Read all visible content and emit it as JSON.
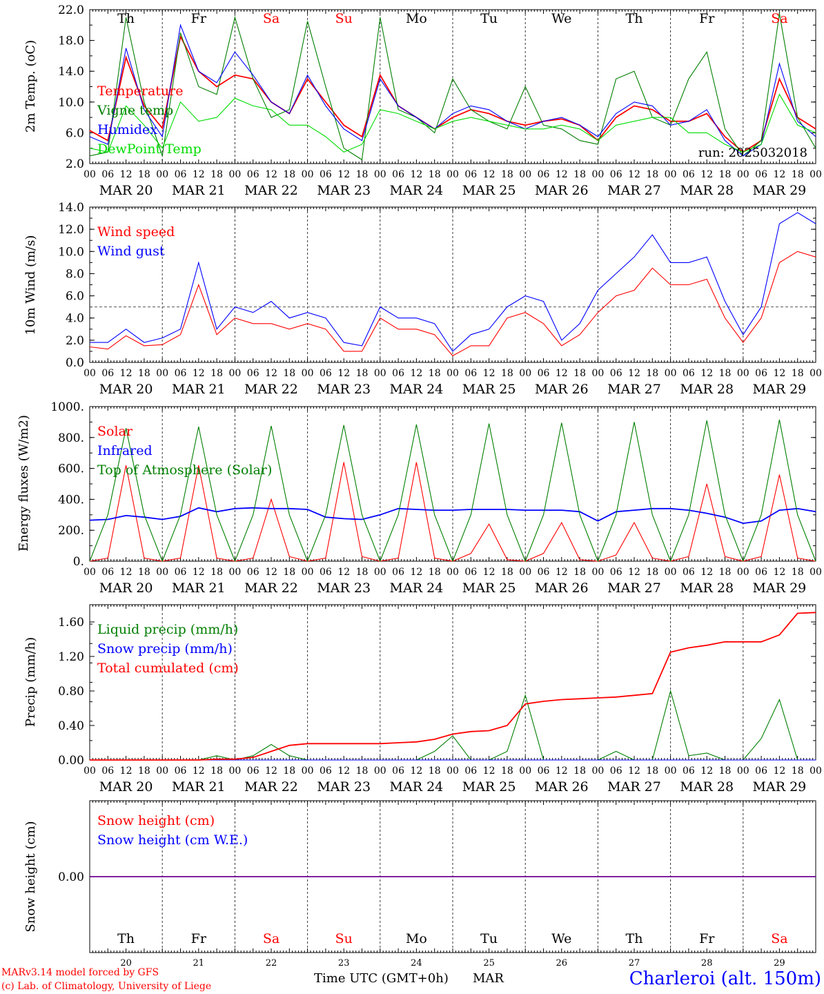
{
  "days": [
    {
      "date": "MAR 20",
      "day": "Th",
      "num": "20",
      "weekend": false
    },
    {
      "date": "MAR 21",
      "day": "Fr",
      "num": "21",
      "weekend": false
    },
    {
      "date": "MAR 22",
      "day": "Sa",
      "num": "22",
      "weekend": true
    },
    {
      "date": "MAR 23",
      "day": "Su",
      "num": "23",
      "weekend": true
    },
    {
      "date": "MAR 24",
      "day": "Mo",
      "num": "24",
      "weekend": false
    },
    {
      "date": "MAR 25",
      "day": "Tu",
      "num": "25",
      "weekend": false
    },
    {
      "date": "MAR 26",
      "day": "We",
      "num": "26",
      "weekend": false
    },
    {
      "date": "MAR 27",
      "day": "Th",
      "num": "27",
      "weekend": false
    },
    {
      "date": "MAR 28",
      "day": "Fr",
      "num": "28",
      "weekend": false
    },
    {
      "date": "MAR 29",
      "day": "Sa",
      "num": "29",
      "weekend": true
    }
  ],
  "hour_labels": [
    "00",
    "06",
    "12",
    "18"
  ],
  "footer": {
    "model_line1": "MARv3.14 model forced by GFS",
    "model_line2": "(c) Lab. of Climatology, University of Liege",
    "xlabel": "Time UTC (GMT+0h)",
    "month": "MAR",
    "station": "Charleroi (alt. 150m)"
  },
  "colors": {
    "red": "#ff0000",
    "blue": "#0000ff",
    "dkgreen": "#007f00",
    "ltgreen": "#00dd00",
    "grid": "#555555"
  },
  "chart_data": [
    {
      "type": "line",
      "ylabel": "2m Temp. (oC)",
      "ylim": [
        2.0,
        22.0
      ],
      "yticks": [
        "22.0",
        "18.0",
        "14.0",
        "10.0",
        "6.0",
        "2.0"
      ],
      "annotation": "run: 2025032018",
      "show_day_names": true,
      "x_hours_from_mar20_00utc": [
        0,
        6,
        12,
        18,
        24,
        30,
        36,
        42,
        48,
        54,
        60,
        66,
        72,
        78,
        84,
        90,
        96,
        102,
        108,
        114,
        120,
        126,
        132,
        138,
        144,
        150,
        156,
        162,
        168,
        174,
        180,
        186,
        192,
        198,
        204,
        210,
        216,
        222,
        228,
        234,
        240
      ],
      "series": [
        {
          "name": "Temperature",
          "color": "#ff0000",
          "values": [
            6.3,
            5.0,
            15.8,
            9.5,
            6.6,
            18.5,
            14.0,
            12.0,
            13.5,
            13.0,
            10.0,
            8.5,
            13.0,
            10.0,
            7.0,
            5.5,
            13.5,
            9.5,
            8.0,
            6.5,
            8.0,
            9.0,
            8.5,
            7.5,
            7.0,
            7.5,
            7.8,
            7.0,
            5.0,
            8.0,
            9.5,
            9.0,
            7.5,
            7.5,
            8.5,
            5.5,
            3.5,
            5.0,
            13.0,
            8.0,
            6.5
          ]
        },
        {
          "name": "Vigne temp",
          "color": "#007f00",
          "values": [
            3.0,
            3.5,
            21.0,
            10.0,
            3.0,
            19.0,
            12.0,
            11.0,
            21.0,
            13.0,
            8.0,
            9.0,
            20.5,
            12.0,
            4.0,
            2.5,
            21.0,
            9.0,
            8.0,
            6.0,
            13.0,
            9.0,
            7.5,
            6.5,
            12.0,
            7.0,
            6.5,
            5.0,
            4.5,
            13.0,
            14.0,
            8.0,
            7.0,
            13.0,
            16.5,
            6.5,
            3.0,
            5.0,
            21.5,
            8.0,
            4.0
          ]
        },
        {
          "name": "Humidex",
          "color": "#0000ff",
          "values": [
            5.5,
            4.5,
            17.0,
            9.0,
            5.5,
            20.0,
            14.0,
            12.5,
            16.5,
            13.5,
            10.0,
            8.5,
            13.5,
            9.5,
            6.5,
            5.0,
            13.0,
            9.5,
            8.0,
            6.5,
            8.5,
            9.5,
            9.0,
            7.5,
            6.5,
            7.5,
            8.0,
            7.0,
            5.5,
            8.5,
            10.0,
            9.5,
            7.0,
            7.5,
            9.0,
            5.0,
            3.0,
            4.5,
            15.0,
            7.5,
            5.5
          ]
        },
        {
          "name": "DewPoint Temp",
          "color": "#00dd00",
          "values": [
            4.0,
            3.5,
            9.5,
            7.0,
            4.0,
            10.0,
            7.5,
            8.0,
            10.5,
            9.5,
            9.0,
            7.0,
            7.0,
            5.5,
            3.5,
            4.5,
            9.0,
            8.5,
            7.5,
            6.5,
            7.5,
            8.0,
            7.5,
            7.0,
            6.5,
            6.5,
            7.0,
            6.5,
            5.0,
            7.0,
            7.5,
            8.0,
            8.0,
            6.0,
            6.0,
            4.5,
            3.5,
            4.5,
            11.0,
            7.0,
            6.0
          ]
        }
      ]
    },
    {
      "type": "line",
      "ylabel": "10m Wind (m/s)",
      "ylim": [
        0.0,
        14.0
      ],
      "yticks": [
        "14.0",
        "12.0",
        "10.0",
        "8.0",
        "6.0",
        "4.0",
        "2.0",
        "0.0"
      ],
      "reference_line": 5.0,
      "x_hours_from_mar20_00utc": [
        0,
        6,
        12,
        18,
        24,
        30,
        36,
        42,
        48,
        54,
        60,
        66,
        72,
        78,
        84,
        90,
        96,
        102,
        108,
        114,
        120,
        126,
        132,
        138,
        144,
        150,
        156,
        162,
        168,
        174,
        180,
        186,
        192,
        198,
        204,
        210,
        216,
        222,
        228,
        234,
        240
      ],
      "series": [
        {
          "name": "Wind speed",
          "color": "#ff0000",
          "values": [
            1.4,
            1.2,
            2.4,
            1.5,
            1.6,
            2.5,
            7.0,
            2.5,
            4.0,
            3.5,
            3.5,
            3.0,
            3.5,
            3.0,
            1.0,
            1.0,
            4.0,
            3.0,
            3.0,
            2.5,
            0.6,
            1.5,
            1.5,
            4.0,
            4.5,
            3.5,
            1.5,
            2.5,
            4.5,
            6.0,
            6.5,
            8.5,
            7.0,
            7.0,
            7.5,
            4.0,
            1.8,
            4.0,
            9.0,
            10.0,
            9.5
          ]
        },
        {
          "name": "Wind gust",
          "color": "#0000ff",
          "values": [
            1.8,
            1.8,
            3.0,
            1.8,
            2.2,
            3.0,
            9.0,
            3.0,
            5.0,
            4.5,
            5.5,
            4.0,
            4.5,
            4.0,
            1.8,
            1.5,
            5.0,
            4.0,
            4.0,
            3.5,
            1.0,
            2.5,
            3.0,
            5.0,
            6.0,
            5.5,
            2.0,
            3.5,
            6.5,
            8.0,
            9.5,
            11.5,
            9.0,
            9.0,
            9.5,
            5.5,
            2.5,
            5.0,
            12.5,
            13.5,
            12.5
          ]
        }
      ]
    },
    {
      "type": "line",
      "ylabel": "Energy fluxes (W/m2)",
      "ylim": [
        0.0,
        1000.0
      ],
      "yticks": [
        "1000.",
        "800.",
        "600.",
        "400.",
        "200.",
        "0."
      ],
      "x_hours_from_mar20_00utc": [
        0,
        6,
        12,
        18,
        24,
        30,
        36,
        42,
        48,
        54,
        60,
        66,
        72,
        78,
        84,
        90,
        96,
        102,
        108,
        114,
        120,
        126,
        132,
        138,
        144,
        150,
        156,
        162,
        168,
        174,
        180,
        186,
        192,
        198,
        204,
        210,
        216,
        222,
        228,
        234,
        240
      ],
      "series": [
        {
          "name": "Solar",
          "color": "#ff0000",
          "values": [
            0,
            20,
            620,
            20,
            0,
            20,
            620,
            20,
            0,
            20,
            400,
            30,
            0,
            20,
            640,
            30,
            0,
            20,
            640,
            20,
            0,
            50,
            240,
            10,
            0,
            50,
            250,
            10,
            0,
            40,
            250,
            20,
            0,
            30,
            500,
            30,
            0,
            30,
            560,
            20,
            0
          ]
        },
        {
          "name": "Infrared",
          "color": "#0000ff",
          "values": [
            265,
            270,
            295,
            285,
            270,
            290,
            345,
            320,
            340,
            345,
            340,
            340,
            335,
            285,
            275,
            270,
            300,
            340,
            335,
            330,
            330,
            335,
            335,
            335,
            330,
            330,
            330,
            320,
            260,
            320,
            330,
            340,
            340,
            330,
            310,
            285,
            245,
            260,
            330,
            340,
            320
          ]
        },
        {
          "name": "Top of Atmosphere (Solar)",
          "color": "#007f00",
          "values": [
            0,
            300,
            860,
            300,
            0,
            300,
            870,
            300,
            0,
            300,
            875,
            300,
            0,
            300,
            880,
            300,
            0,
            300,
            885,
            300,
            0,
            300,
            890,
            300,
            0,
            300,
            895,
            300,
            0,
            300,
            900,
            300,
            0,
            300,
            910,
            300,
            0,
            300,
            915,
            300,
            0
          ]
        }
      ]
    },
    {
      "type": "line",
      "ylabel": "Precip (mm/h)",
      "ylim": [
        0.0,
        1.8
      ],
      "yticks": [
        "1.60",
        "1.20",
        "0.80",
        "0.40",
        "0.00"
      ],
      "x_hours_from_mar20_00utc": [
        0,
        6,
        12,
        18,
        24,
        30,
        36,
        42,
        48,
        54,
        60,
        66,
        72,
        78,
        84,
        90,
        96,
        102,
        108,
        114,
        120,
        126,
        132,
        138,
        144,
        150,
        156,
        162,
        168,
        174,
        180,
        186,
        192,
        198,
        204,
        210,
        216,
        222,
        228,
        234,
        240
      ],
      "series": [
        {
          "name": "Liquid precip (mm/h)",
          "color": "#007f00",
          "values": [
            0,
            0,
            0,
            0,
            0,
            0,
            0,
            0.05,
            0,
            0.05,
            0.18,
            0.05,
            0,
            0,
            0,
            0,
            0,
            0,
            0,
            0.1,
            0.28,
            0,
            0,
            0.1,
            0.75,
            0,
            0,
            0,
            0,
            0.1,
            0,
            0,
            0.8,
            0.05,
            0.08,
            0,
            0,
            0.25,
            0.7,
            0,
            0
          ]
        },
        {
          "name": "Snow precip (mm/h)",
          "color": "#0000ff",
          "values": [
            0,
            0,
            0,
            0,
            0,
            0,
            0,
            0,
            0,
            0,
            0,
            0,
            0,
            0,
            0,
            0,
            0,
            0,
            0,
            0,
            0,
            0,
            0,
            0,
            0,
            0,
            0,
            0,
            0,
            0,
            0,
            0,
            0,
            0,
            0,
            0,
            0,
            0,
            0,
            0,
            0
          ]
        },
        {
          "name": "Total cumulated (cm)",
          "color": "#ff0000",
          "values": [
            0,
            0,
            0,
            0,
            0,
            0,
            0,
            0.01,
            0.01,
            0.03,
            0.1,
            0.17,
            0.19,
            0.19,
            0.19,
            0.19,
            0.19,
            0.2,
            0.21,
            0.24,
            0.3,
            0.33,
            0.34,
            0.4,
            0.65,
            0.68,
            0.7,
            0.71,
            0.72,
            0.73,
            0.75,
            0.77,
            1.25,
            1.3,
            1.33,
            1.37,
            1.37,
            1.37,
            1.45,
            1.7,
            1.71
          ]
        }
      ]
    },
    {
      "type": "line",
      "ylabel": "Snow height (cm)",
      "ylim": [
        -1.0,
        1.0
      ],
      "yticks": [
        "0.00"
      ],
      "x_hours_from_mar20_00utc": [
        0,
        240
      ],
      "show_bottom_day_names": true,
      "series": [
        {
          "name": "Snow height (cm)",
          "color": "#ff0000",
          "values": [
            0,
            0
          ]
        },
        {
          "name": "Snow height (cm W.E.)",
          "color": "#0000ff",
          "values": [
            0,
            0
          ]
        }
      ]
    }
  ]
}
